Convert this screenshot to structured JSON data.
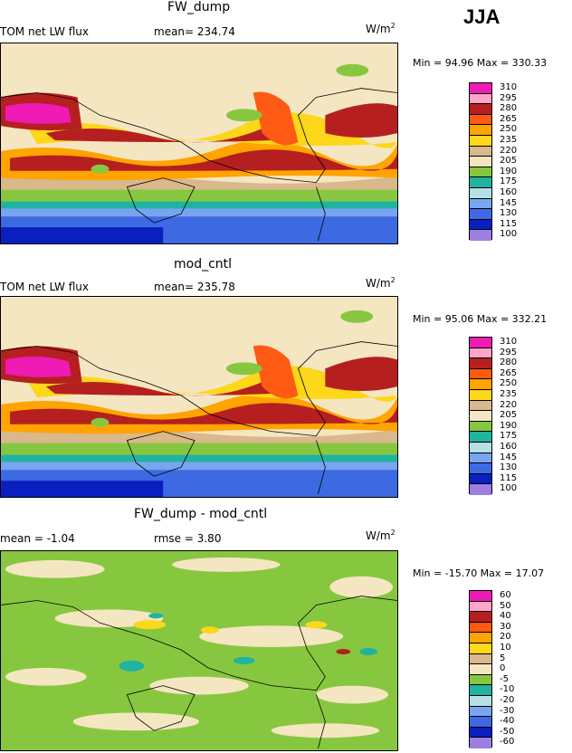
{
  "season": "JJA",
  "units_base": "W/m",
  "units_exp": "2",
  "colors": {
    "abs": [
      "#9c7fe0",
      "#0a1fbf",
      "#3d69e3",
      "#78a5f0",
      "#b5e0e6",
      "#1fb3a0",
      "#87c740",
      "#f5e6c2",
      "#d9b88c",
      "#fcd71a",
      "#ffa400",
      "#ff5a14",
      "#b51f1f",
      "#ffa6c8",
      "#f01ab4"
    ],
    "diff": [
      "#9c7fe0",
      "#0a1fbf",
      "#3d69e3",
      "#78a5f0",
      "#b5e0e6",
      "#1fb3a0",
      "#87c740",
      "#f5e6c2",
      "#d9b88c",
      "#fcd71a",
      "#ffa400",
      "#ff5a14",
      "#b51f1f",
      "#ffa6c8",
      "#f01ab4"
    ]
  },
  "panels": [
    {
      "title": "FW_dump",
      "left_label": "TOM net LW flux",
      "stat_label": "mean= 234.74",
      "minmax": "Min =   94.96  Max = 330.33",
      "ticks": [
        "310",
        "295",
        "280",
        "265",
        "250",
        "235",
        "220",
        "205",
        "190",
        "175",
        "160",
        "145",
        "130",
        "115",
        "100"
      ]
    },
    {
      "title": "mod_cntl",
      "left_label": "TOM net LW flux",
      "stat_label": "mean= 235.78",
      "minmax": "Min =   95.06  Max = 332.21",
      "ticks": [
        "310",
        "295",
        "280",
        "265",
        "250",
        "235",
        "220",
        "205",
        "190",
        "175",
        "160",
        "145",
        "130",
        "115",
        "100"
      ]
    },
    {
      "title": "FW_dump - mod_cntl",
      "left_label": "mean =   -1.04",
      "stat_label": "rmse =    3.80",
      "minmax": "Min = -15.70  Max =  17.07",
      "ticks": [
        "60",
        "50",
        "40",
        "30",
        "20",
        "10",
        "5",
        "0",
        "-5",
        "-10",
        "-20",
        "-30",
        "-40",
        "-50",
        "-60"
      ]
    }
  ]
}
